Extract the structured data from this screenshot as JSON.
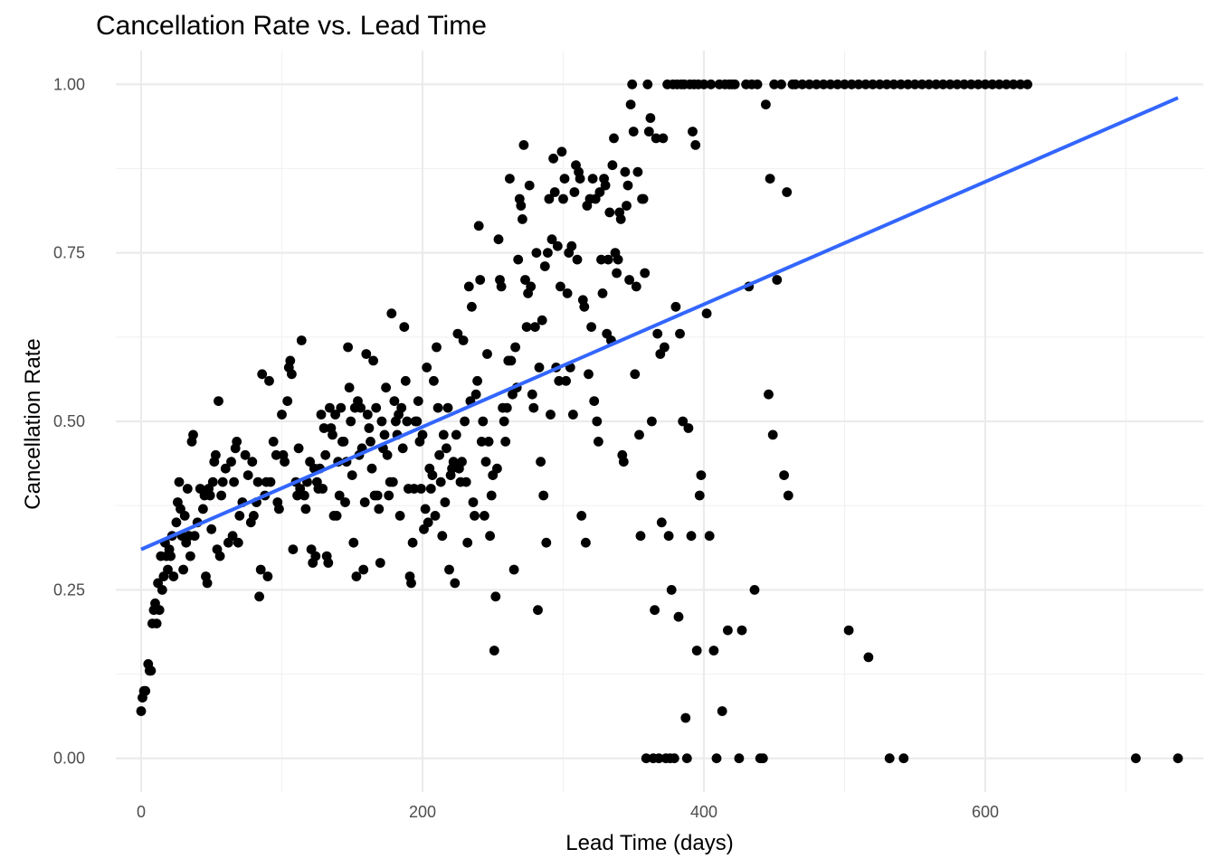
{
  "chart_data": {
    "type": "scatter",
    "title": "Cancellation Rate vs. Lead Time",
    "xlabel": "Lead Time (days)",
    "ylabel": "Cancellation Rate",
    "xlim": [
      -18,
      755
    ],
    "ylim": [
      -0.05,
      1.05
    ],
    "x_ticks": [
      0,
      200,
      400,
      600
    ],
    "x_tick_labels": [
      "0",
      "200",
      "400",
      "600"
    ],
    "y_ticks": [
      0,
      0.25,
      0.5,
      0.75,
      1.0
    ],
    "y_tick_labels": [
      "0.00",
      "0.25",
      "0.50",
      "0.75",
      "1.00"
    ],
    "grid": true,
    "trend_line": {
      "color": "#3366ff",
      "x": [
        0,
        737
      ],
      "y": [
        0.31,
        0.98
      ]
    },
    "point_color": "#000000",
    "points": [
      [
        0,
        0.07
      ],
      [
        1,
        0.09
      ],
      [
        2,
        0.1
      ],
      [
        3,
        0.1
      ],
      [
        5,
        0.14
      ],
      [
        6,
        0.13
      ],
      [
        7,
        0.13
      ],
      [
        8,
        0.2
      ],
      [
        9,
        0.22
      ],
      [
        10,
        0.23
      ],
      [
        11,
        0.2
      ],
      [
        12,
        0.26
      ],
      [
        13,
        0.22
      ],
      [
        14,
        0.3
      ],
      [
        15,
        0.25
      ],
      [
        16,
        0.27
      ],
      [
        17,
        0.32
      ],
      [
        18,
        0.3
      ],
      [
        19,
        0.28
      ],
      [
        20,
        0.31
      ],
      [
        21,
        0.3
      ],
      [
        22,
        0.33
      ],
      [
        23,
        0.27
      ],
      [
        25,
        0.35
      ],
      [
        26,
        0.38
      ],
      [
        27,
        0.41
      ],
      [
        28,
        0.37
      ],
      [
        29,
        0.33
      ],
      [
        30,
        0.28
      ],
      [
        31,
        0.36
      ],
      [
        32,
        0.32
      ],
      [
        33,
        0.4
      ],
      [
        34,
        0.33
      ],
      [
        35,
        0.3
      ],
      [
        36,
        0.47
      ],
      [
        37,
        0.48
      ],
      [
        38,
        0.33
      ],
      [
        40,
        0.35
      ],
      [
        42,
        0.4
      ],
      [
        44,
        0.37
      ],
      [
        45,
        0.39
      ],
      [
        46,
        0.27
      ],
      [
        47,
        0.26
      ],
      [
        48,
        0.4
      ],
      [
        49,
        0.39
      ],
      [
        50,
        0.34
      ],
      [
        51,
        0.41
      ],
      [
        52,
        0.44
      ],
      [
        53,
        0.45
      ],
      [
        54,
        0.31
      ],
      [
        55,
        0.53
      ],
      [
        56,
        0.3
      ],
      [
        57,
        0.39
      ],
      [
        58,
        0.41
      ],
      [
        60,
        0.43
      ],
      [
        62,
        0.32
      ],
      [
        64,
        0.44
      ],
      [
        65,
        0.33
      ],
      [
        66,
        0.41
      ],
      [
        67,
        0.46
      ],
      [
        68,
        0.47
      ],
      [
        69,
        0.32
      ],
      [
        70,
        0.36
      ],
      [
        72,
        0.38
      ],
      [
        74,
        0.45
      ],
      [
        76,
        0.42
      ],
      [
        78,
        0.35
      ],
      [
        79,
        0.44
      ],
      [
        80,
        0.36
      ],
      [
        82,
        0.38
      ],
      [
        83,
        0.41
      ],
      [
        84,
        0.24
      ],
      [
        85,
        0.28
      ],
      [
        86,
        0.57
      ],
      [
        88,
        0.39
      ],
      [
        89,
        0.41
      ],
      [
        90,
        0.27
      ],
      [
        91,
        0.56
      ],
      [
        92,
        0.41
      ],
      [
        94,
        0.47
      ],
      [
        96,
        0.45
      ],
      [
        97,
        0.38
      ],
      [
        98,
        0.37
      ],
      [
        100,
        0.51
      ],
      [
        101,
        0.45
      ],
      [
        102,
        0.44
      ],
      [
        104,
        0.53
      ],
      [
        105,
        0.58
      ],
      [
        106,
        0.59
      ],
      [
        107,
        0.57
      ],
      [
        108,
        0.31
      ],
      [
        110,
        0.41
      ],
      [
        111,
        0.39
      ],
      [
        112,
        0.46
      ],
      [
        113,
        0.4
      ],
      [
        114,
        0.62
      ],
      [
        116,
        0.39
      ],
      [
        117,
        0.37
      ],
      [
        118,
        0.41
      ],
      [
        120,
        0.44
      ],
      [
        121,
        0.31
      ],
      [
        122,
        0.29
      ],
      [
        123,
        0.43
      ],
      [
        124,
        0.3
      ],
      [
        125,
        0.41
      ],
      [
        126,
        0.4
      ],
      [
        127,
        0.43
      ],
      [
        128,
        0.51
      ],
      [
        129,
        0.4
      ],
      [
        130,
        0.49
      ],
      [
        131,
        0.45
      ],
      [
        132,
        0.3
      ],
      [
        133,
        0.29
      ],
      [
        134,
        0.52
      ],
      [
        135,
        0.49
      ],
      [
        136,
        0.48
      ],
      [
        137,
        0.36
      ],
      [
        138,
        0.51
      ],
      [
        139,
        0.36
      ],
      [
        140,
        0.44
      ],
      [
        141,
        0.39
      ],
      [
        142,
        0.52
      ],
      [
        143,
        0.47
      ],
      [
        144,
        0.47
      ],
      [
        145,
        0.38
      ],
      [
        146,
        0.44
      ],
      [
        147,
        0.61
      ],
      [
        148,
        0.55
      ],
      [
        149,
        0.5
      ],
      [
        150,
        0.42
      ],
      [
        151,
        0.32
      ],
      [
        152,
        0.52
      ],
      [
        153,
        0.27
      ],
      [
        154,
        0.53
      ],
      [
        155,
        0.45
      ],
      [
        156,
        0.52
      ],
      [
        157,
        0.46
      ],
      [
        158,
        0.28
      ],
      [
        159,
        0.38
      ],
      [
        160,
        0.6
      ],
      [
        161,
        0.51
      ],
      [
        162,
        0.49
      ],
      [
        163,
        0.47
      ],
      [
        164,
        0.43
      ],
      [
        165,
        0.59
      ],
      [
        166,
        0.39
      ],
      [
        167,
        0.52
      ],
      [
        168,
        0.39
      ],
      [
        169,
        0.37
      ],
      [
        170,
        0.29
      ],
      [
        171,
        0.5
      ],
      [
        172,
        0.46
      ],
      [
        173,
        0.48
      ],
      [
        174,
        0.55
      ],
      [
        175,
        0.45
      ],
      [
        176,
        0.39
      ],
      [
        177,
        0.41
      ],
      [
        178,
        0.66
      ],
      [
        179,
        0.41
      ],
      [
        180,
        0.53
      ],
      [
        181,
        0.5
      ],
      [
        182,
        0.48
      ],
      [
        183,
        0.51
      ],
      [
        184,
        0.36
      ],
      [
        185,
        0.52
      ],
      [
        186,
        0.46
      ],
      [
        187,
        0.64
      ],
      [
        188,
        0.56
      ],
      [
        189,
        0.5
      ],
      [
        190,
        0.4
      ],
      [
        191,
        0.27
      ],
      [
        192,
        0.26
      ],
      [
        193,
        0.32
      ],
      [
        194,
        0.4
      ],
      [
        195,
        0.5
      ],
      [
        196,
        0.5
      ],
      [
        197,
        0.53
      ],
      [
        198,
        0.47
      ],
      [
        199,
        0.4
      ],
      [
        200,
        0.48
      ],
      [
        201,
        0.34
      ],
      [
        202,
        0.37
      ],
      [
        203,
        0.58
      ],
      [
        204,
        0.35
      ],
      [
        205,
        0.43
      ],
      [
        206,
        0.4
      ],
      [
        207,
        0.42
      ],
      [
        208,
        0.56
      ],
      [
        209,
        0.36
      ],
      [
        210,
        0.61
      ],
      [
        211,
        0.52
      ],
      [
        212,
        0.45
      ],
      [
        213,
        0.41
      ],
      [
        214,
        0.33
      ],
      [
        215,
        0.48
      ],
      [
        216,
        0.38
      ],
      [
        217,
        0.46
      ],
      [
        218,
        0.52
      ],
      [
        219,
        0.28
      ],
      [
        220,
        0.42
      ],
      [
        221,
        0.43
      ],
      [
        222,
        0.44
      ],
      [
        223,
        0.26
      ],
      [
        224,
        0.48
      ],
      [
        225,
        0.63
      ],
      [
        226,
        0.43
      ],
      [
        227,
        0.41
      ],
      [
        228,
        0.44
      ],
      [
        229,
        0.62
      ],
      [
        230,
        0.5
      ],
      [
        231,
        0.41
      ],
      [
        232,
        0.32
      ],
      [
        233,
        0.7
      ],
      [
        234,
        0.53
      ],
      [
        235,
        0.67
      ],
      [
        236,
        0.38
      ],
      [
        237,
        0.36
      ],
      [
        238,
        0.54
      ],
      [
        239,
        0.56
      ],
      [
        240,
        0.79
      ],
      [
        241,
        0.71
      ],
      [
        242,
        0.47
      ],
      [
        243,
        0.5
      ],
      [
        244,
        0.36
      ],
      [
        245,
        0.44
      ],
      [
        246,
        0.6
      ],
      [
        247,
        0.47
      ],
      [
        248,
        0.33
      ],
      [
        249,
        0.39
      ],
      [
        250,
        0.42
      ],
      [
        251,
        0.16
      ],
      [
        252,
        0.24
      ],
      [
        253,
        0.43
      ],
      [
        254,
        0.77
      ],
      [
        255,
        0.71
      ],
      [
        256,
        0.7
      ],
      [
        257,
        0.52
      ],
      [
        258,
        0.5
      ],
      [
        259,
        0.47
      ],
      [
        260,
        0.52
      ],
      [
        261,
        0.59
      ],
      [
        262,
        0.86
      ],
      [
        263,
        0.59
      ],
      [
        264,
        0.54
      ],
      [
        265,
        0.28
      ],
      [
        266,
        0.61
      ],
      [
        267,
        0.55
      ],
      [
        268,
        0.74
      ],
      [
        269,
        0.83
      ],
      [
        270,
        0.82
      ],
      [
        271,
        0.8
      ],
      [
        272,
        0.91
      ],
      [
        273,
        0.71
      ],
      [
        274,
        0.64
      ],
      [
        275,
        0.69
      ],
      [
        276,
        0.85
      ],
      [
        277,
        0.7
      ],
      [
        278,
        0.54
      ],
      [
        279,
        0.52
      ],
      [
        280,
        0.64
      ],
      [
        281,
        0.75
      ],
      [
        282,
        0.22
      ],
      [
        283,
        0.58
      ],
      [
        284,
        0.44
      ],
      [
        285,
        0.65
      ],
      [
        286,
        0.39
      ],
      [
        287,
        0.73
      ],
      [
        288,
        0.32
      ],
      [
        289,
        0.75
      ],
      [
        290,
        0.83
      ],
      [
        291,
        0.51
      ],
      [
        292,
        0.77
      ],
      [
        293,
        0.89
      ],
      [
        294,
        0.84
      ],
      [
        295,
        0.58
      ],
      [
        296,
        0.76
      ],
      [
        297,
        0.56
      ],
      [
        298,
        0.7
      ],
      [
        299,
        0.9
      ],
      [
        300,
        0.83
      ],
      [
        301,
        0.86
      ],
      [
        302,
        0.56
      ],
      [
        303,
        0.69
      ],
      [
        304,
        0.75
      ],
      [
        305,
        0.58
      ],
      [
        306,
        0.76
      ],
      [
        307,
        0.51
      ],
      [
        308,
        0.84
      ],
      [
        309,
        0.88
      ],
      [
        310,
        0.74
      ],
      [
        311,
        0.87
      ],
      [
        312,
        0.86
      ],
      [
        313,
        0.36
      ],
      [
        314,
        0.68
      ],
      [
        315,
        0.67
      ],
      [
        316,
        0.32
      ],
      [
        317,
        0.82
      ],
      [
        318,
        0.57
      ],
      [
        319,
        0.83
      ],
      [
        320,
        0.64
      ],
      [
        321,
        0.86
      ],
      [
        322,
        0.53
      ],
      [
        323,
        0.83
      ],
      [
        324,
        0.5
      ],
      [
        325,
        0.47
      ],
      [
        326,
        0.84
      ],
      [
        327,
        0.74
      ],
      [
        328,
        0.69
      ],
      [
        329,
        0.86
      ],
      [
        330,
        0.85
      ],
      [
        331,
        0.63
      ],
      [
        332,
        0.74
      ],
      [
        333,
        0.81
      ],
      [
        334,
        0.62
      ],
      [
        335,
        0.88
      ],
      [
        336,
        0.92
      ],
      [
        337,
        0.75
      ],
      [
        338,
        0.72
      ],
      [
        339,
        0.74
      ],
      [
        340,
        0.81
      ],
      [
        341,
        0.8
      ],
      [
        342,
        0.45
      ],
      [
        343,
        0.44
      ],
      [
        344,
        0.87
      ],
      [
        345,
        0.82
      ],
      [
        346,
        0.85
      ],
      [
        347,
        0.71
      ],
      [
        348,
        0.97
      ],
      [
        349,
        1.0
      ],
      [
        350,
        0.93
      ],
      [
        351,
        0.57
      ],
      [
        352,
        0.7
      ],
      [
        353,
        0.87
      ],
      [
        354,
        0.48
      ],
      [
        355,
        0.33
      ],
      [
        356,
        0.83
      ],
      [
        357,
        0.83
      ],
      [
        358,
        0.72
      ],
      [
        359,
        0.0
      ],
      [
        360,
        1.0
      ],
      [
        361,
        0.93
      ],
      [
        362,
        0.95
      ],
      [
        363,
        0.5
      ],
      [
        364,
        0.0
      ],
      [
        365,
        0.22
      ],
      [
        366,
        0.92
      ],
      [
        367,
        0.63
      ],
      [
        368,
        0.0
      ],
      [
        369,
        0.6
      ],
      [
        370,
        0.35
      ],
      [
        371,
        0.92
      ],
      [
        372,
        0.61
      ],
      [
        373,
        0.0
      ],
      [
        374,
        1.0
      ],
      [
        375,
        0.33
      ],
      [
        376,
        0.0
      ],
      [
        377,
        0.25
      ],
      [
        378,
        1.0
      ],
      [
        379,
        0.0
      ],
      [
        380,
        0.67
      ],
      [
        381,
        1.0
      ],
      [
        382,
        0.21
      ],
      [
        383,
        0.63
      ],
      [
        384,
        1.0
      ],
      [
        385,
        0.5
      ],
      [
        386,
        1.0
      ],
      [
        387,
        0.06
      ],
      [
        388,
        0.0
      ],
      [
        389,
        0.49
      ],
      [
        390,
        1.0
      ],
      [
        391,
        0.33
      ],
      [
        392,
        0.93
      ],
      [
        393,
        1.0
      ],
      [
        394,
        0.91
      ],
      [
        395,
        0.16
      ],
      [
        396,
        1.0
      ],
      [
        397,
        0.39
      ],
      [
        398,
        0.42
      ],
      [
        400,
        1.0
      ],
      [
        402,
        0.66
      ],
      [
        404,
        0.33
      ],
      [
        405,
        1.0
      ],
      [
        407,
        0.16
      ],
      [
        409,
        0.0
      ],
      [
        411,
        1.0
      ],
      [
        413,
        0.07
      ],
      [
        415,
        1.0
      ],
      [
        417,
        0.19
      ],
      [
        418,
        1.0
      ],
      [
        420,
        1.0
      ],
      [
        422,
        1.0
      ],
      [
        425,
        0.0
      ],
      [
        427,
        0.19
      ],
      [
        430,
        1.0
      ],
      [
        432,
        0.7
      ],
      [
        434,
        1.0
      ],
      [
        436,
        0.25
      ],
      [
        438,
        1.0
      ],
      [
        440,
        0.0
      ],
      [
        442,
        0.0
      ],
      [
        444,
        0.97
      ],
      [
        446,
        0.54
      ],
      [
        447,
        0.86
      ],
      [
        449,
        0.48
      ],
      [
        450,
        1.0
      ],
      [
        452,
        0.71
      ],
      [
        455,
        1.0
      ],
      [
        457,
        0.42
      ],
      [
        459,
        0.84
      ],
      [
        460,
        0.39
      ],
      [
        463,
        1.0
      ],
      [
        465,
        1.0
      ],
      [
        470,
        1.0
      ],
      [
        475,
        1.0
      ],
      [
        480,
        1.0
      ],
      [
        485,
        1.0
      ],
      [
        490,
        1.0
      ],
      [
        495,
        1.0
      ],
      [
        500,
        1.0
      ],
      [
        503,
        0.19
      ],
      [
        505,
        1.0
      ],
      [
        510,
        1.0
      ],
      [
        515,
        1.0
      ],
      [
        517,
        0.15
      ],
      [
        520,
        1.0
      ],
      [
        525,
        1.0
      ],
      [
        530,
        1.0
      ],
      [
        532,
        0.0
      ],
      [
        535,
        1.0
      ],
      [
        540,
        1.0
      ],
      [
        542,
        0.0
      ],
      [
        545,
        1.0
      ],
      [
        550,
        1.0
      ],
      [
        555,
        1.0
      ],
      [
        560,
        1.0
      ],
      [
        565,
        1.0
      ],
      [
        570,
        1.0
      ],
      [
        575,
        1.0
      ],
      [
        580,
        1.0
      ],
      [
        585,
        1.0
      ],
      [
        590,
        1.0
      ],
      [
        595,
        1.0
      ],
      [
        600,
        1.0
      ],
      [
        605,
        1.0
      ],
      [
        610,
        1.0
      ],
      [
        615,
        1.0
      ],
      [
        620,
        1.0
      ],
      [
        625,
        1.0
      ],
      [
        630,
        1.0
      ],
      [
        707,
        0.0
      ],
      [
        737,
        0.0
      ]
    ]
  }
}
